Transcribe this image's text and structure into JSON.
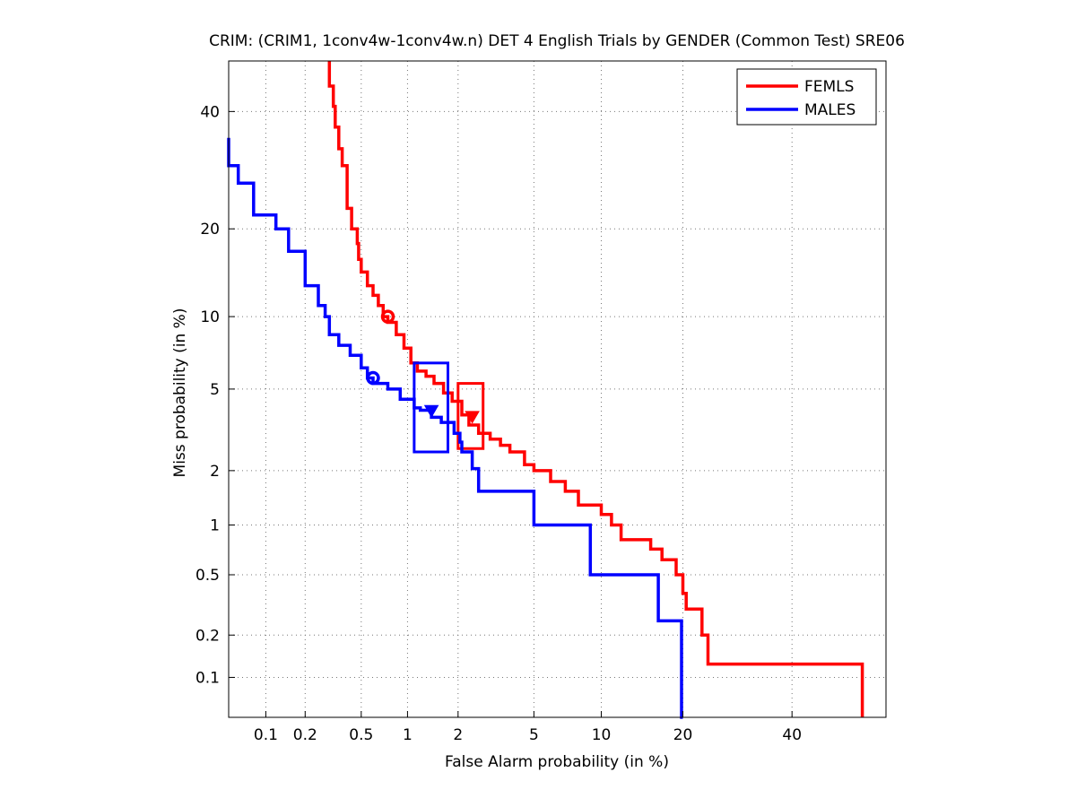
{
  "chart_data": {
    "type": "line",
    "subtype": "DET curve (normal deviate scale on both axes)",
    "title": "CRIM: (CRIM1, 1conv4w-1conv4w.n) DET 4 English Trials by GENDER (Common Test) SRE06",
    "xlabel": "False Alarm probability (in %)",
    "ylabel": "Miss probability (in %)",
    "x_scale": "normal-deviate",
    "y_scale": "normal-deviate",
    "xlim": [
      0.05,
      60
    ],
    "ylim": [
      0.05,
      50
    ],
    "x_ticks": [
      "0.1",
      "0.2",
      "0.5",
      "1",
      "2",
      "5",
      "10",
      "20",
      "40"
    ],
    "y_ticks": [
      "0.1",
      "0.2",
      "0.5",
      "1",
      "2",
      "5",
      "10",
      "20",
      "40"
    ],
    "grid": true,
    "legend_position": "top-right",
    "series": [
      {
        "name": "FEMLS",
        "color": "#ff0000",
        "points": [
          [
            0.3,
            50
          ],
          [
            0.32,
            45
          ],
          [
            0.33,
            41
          ],
          [
            0.35,
            37
          ],
          [
            0.37,
            33
          ],
          [
            0.4,
            30
          ],
          [
            0.4,
            25
          ],
          [
            0.43,
            23
          ],
          [
            0.47,
            20
          ],
          [
            0.48,
            18
          ],
          [
            0.5,
            16
          ],
          [
            0.55,
            14.5
          ],
          [
            0.6,
            13
          ],
          [
            0.65,
            12
          ],
          [
            0.7,
            11
          ],
          [
            0.75,
            10
          ],
          [
            0.85,
            9.5
          ],
          [
            0.95,
            8.5
          ],
          [
            1.05,
            7.5
          ],
          [
            1.15,
            6.5
          ],
          [
            1.3,
            6
          ],
          [
            1.45,
            5.7
          ],
          [
            1.65,
            5.3
          ],
          [
            1.85,
            4.8
          ],
          [
            2.1,
            4.4
          ],
          [
            2.3,
            3.8
          ],
          [
            2.6,
            3.4
          ],
          [
            3.0,
            3.1
          ],
          [
            3.4,
            2.9
          ],
          [
            3.8,
            2.7
          ],
          [
            4.5,
            2.5
          ],
          [
            5.0,
            2.15
          ],
          [
            6.0,
            2.0
          ],
          [
            7.0,
            1.75
          ],
          [
            8.0,
            1.55
          ],
          [
            10.0,
            1.3
          ],
          [
            11.0,
            1.15
          ],
          [
            12.0,
            1.0
          ],
          [
            15.5,
            0.82
          ],
          [
            17.0,
            0.72
          ],
          [
            19.0,
            0.62
          ],
          [
            20.0,
            0.5
          ],
          [
            20.5,
            0.38
          ],
          [
            23.0,
            0.3
          ],
          [
            24.0,
            0.2
          ],
          [
            24.5,
            0.125
          ],
          [
            55.0,
            0.125
          ],
          [
            55.0,
            0.05
          ]
        ],
        "marker_circle": [
          0.75,
          10.0
        ],
        "marker_triangle": [
          2.4,
          3.75
        ],
        "confidence_box": {
          "x": [
            2.0,
            2.75
          ],
          "y": [
            2.6,
            5.3
          ]
        }
      },
      {
        "name": "MALES",
        "color": "#0000ff",
        "points": [
          [
            0.05,
            35
          ],
          [
            0.06,
            30
          ],
          [
            0.08,
            27
          ],
          [
            0.12,
            22
          ],
          [
            0.15,
            20
          ],
          [
            0.2,
            17
          ],
          [
            0.2,
            14
          ],
          [
            0.25,
            13
          ],
          [
            0.28,
            11
          ],
          [
            0.3,
            10
          ],
          [
            0.35,
            8.5
          ],
          [
            0.42,
            7.7
          ],
          [
            0.5,
            7
          ],
          [
            0.55,
            6.2
          ],
          [
            0.6,
            5.6
          ],
          [
            0.75,
            5.3
          ],
          [
            0.9,
            5.0
          ],
          [
            1.1,
            4.5
          ],
          [
            1.2,
            4.1
          ],
          [
            1.4,
            4.0
          ],
          [
            1.6,
            3.7
          ],
          [
            1.9,
            3.5
          ],
          [
            2.05,
            3.1
          ],
          [
            2.1,
            2.8
          ],
          [
            2.4,
            2.5
          ],
          [
            2.6,
            2.05
          ],
          [
            2.7,
            1.55
          ],
          [
            5.0,
            1.55
          ],
          [
            5.0,
            1.25
          ],
          [
            5.2,
            1.0
          ],
          [
            9.0,
            1.0
          ],
          [
            9.0,
            0.72
          ],
          [
            9.5,
            0.5
          ],
          [
            16.5,
            0.5
          ],
          [
            16.5,
            0.33
          ],
          [
            17.0,
            0.25
          ],
          [
            19.8,
            0.25
          ],
          [
            20.0,
            0.05
          ]
        ],
        "marker_circle": [
          0.6,
          5.6
        ],
        "marker_triangle": [
          1.4,
          4.0
        ],
        "confidence_box": {
          "x": [
            1.1,
            1.75
          ],
          "y": [
            2.5,
            6.5
          ]
        }
      }
    ]
  }
}
